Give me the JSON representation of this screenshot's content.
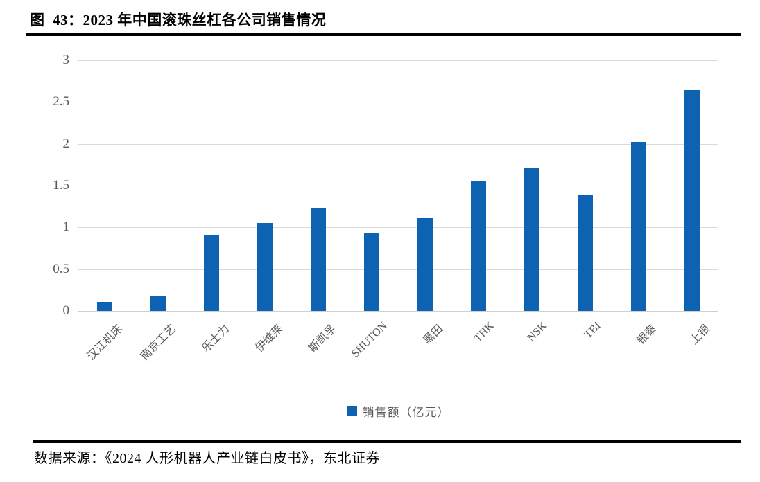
{
  "figure": {
    "title": "图  43：2023 年中国滚珠丝杠各公司销售情况",
    "source": "数据来源：《2024 人形机器人产业链白皮书》，东北证券"
  },
  "legend": {
    "label": "销售额（亿元）"
  },
  "colors": {
    "bar": "#0d62b1",
    "grid": "#d9d9d9",
    "axis_text": "#595959",
    "title_text": "#000000"
  },
  "chart_data": {
    "type": "bar",
    "title": "2023 年中国滚珠丝杠各公司销售情况",
    "categories": [
      "汉江机床",
      "南京工艺",
      "乐士力",
      "伊维莱",
      "斯凯孚",
      "SHUTON",
      "黑田",
      "THK",
      "NSK",
      "TBI",
      "银泰",
      "上银"
    ],
    "values": [
      0.11,
      0.17,
      0.91,
      1.05,
      1.23,
      0.94,
      1.11,
      1.55,
      1.71,
      1.39,
      2.02,
      2.64
    ],
    "series_name": "销售额（亿元）",
    "xlabel": "",
    "ylabel": "",
    "ylim": [
      0,
      3
    ],
    "ytick_step": 0.5,
    "yticks": [
      "0",
      "0.5",
      "1",
      "1.5",
      "2",
      "2.5",
      "3"
    ],
    "grid": true,
    "legend_position": "bottom",
    "x_label_rotation_deg": 45
  }
}
